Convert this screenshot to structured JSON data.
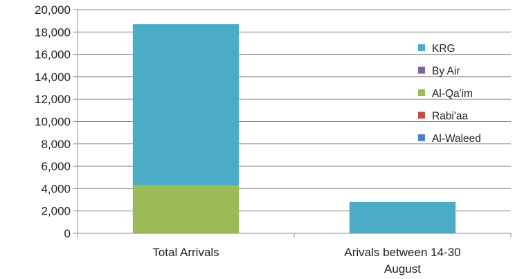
{
  "chart_data": {
    "type": "bar",
    "stacked": true,
    "categories": [
      [
        "Total Arrivals"
      ],
      [
        "Arivals between 14-30",
        "August"
      ]
    ],
    "series": [
      {
        "name": "Al-Waleed",
        "color": "#4F81BD",
        "values": [
          0,
          0
        ]
      },
      {
        "name": "Rabi'aa",
        "color": "#C0504D",
        "values": [
          0,
          0
        ]
      },
      {
        "name": "Al-Qa'im",
        "color": "#9BBB59",
        "values": [
          4300,
          0
        ]
      },
      {
        "name": "By Air",
        "color": "#8064A2",
        "values": [
          0,
          0
        ]
      },
      {
        "name": "KRG",
        "color": "#4BACC6",
        "values": [
          14400,
          2800
        ]
      }
    ],
    "legend_order": [
      "KRG",
      "By Air",
      "Al-Qa'im",
      "Rabi'aa",
      "Al-Waleed"
    ],
    "ylim": [
      0,
      20000
    ],
    "yticks": [
      0,
      2000,
      4000,
      6000,
      8000,
      10000,
      12000,
      14000,
      16000,
      18000,
      20000
    ],
    "ytick_labels": [
      "0",
      "2,000",
      "4,000",
      "6,000",
      "8,000",
      "10,000",
      "12,000",
      "14,000",
      "16,000",
      "18,000",
      "20,000"
    ],
    "grid": true,
    "legend_position": "right"
  }
}
